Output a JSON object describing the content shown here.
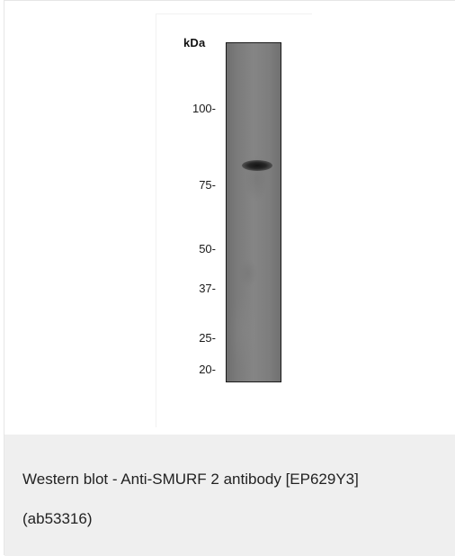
{
  "figure": {
    "unit_label": "kDa",
    "markers": [
      {
        "label": "100-",
        "kda": 100
      },
      {
        "label": "75-",
        "kda": 75
      },
      {
        "label": "50-",
        "kda": 50
      },
      {
        "label": "37-",
        "kda": 37
      },
      {
        "label": "25-",
        "kda": 25
      },
      {
        "label": "20-",
        "kda": 20
      }
    ],
    "band_kda": 80
  },
  "caption": {
    "line1": "Western blot - Anti-SMURF 2 antibody [EP629Y3]",
    "line2": "(ab53316)"
  }
}
